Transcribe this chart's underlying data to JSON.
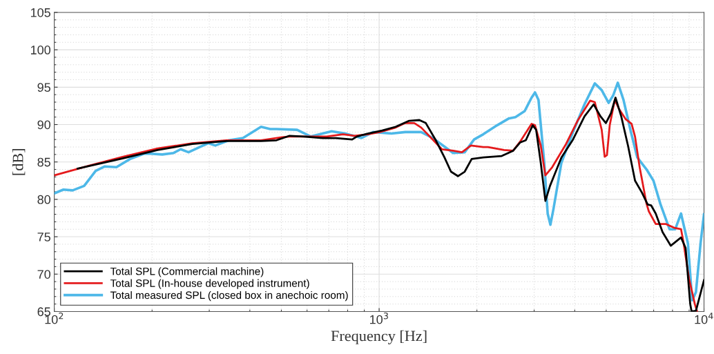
{
  "chart_data": {
    "type": "line",
    "xlabel": "Frequency [Hz]",
    "ylabel": "[dB]",
    "log": "x",
    "xlim": [
      100,
      10000
    ],
    "xticks": [
      {
        "value": 100,
        "label": "10$^{2}$"
      },
      {
        "value": 1000,
        "label": "10$^{3}$"
      },
      {
        "value": 10000,
        "label": "10$^{4}$"
      }
    ],
    "ylim": [
      65,
      105
    ],
    "yticks": [
      65,
      70,
      75,
      80,
      85,
      90,
      95,
      100,
      105
    ],
    "grid": true,
    "legend": "bottom left",
    "marker": "none",
    "line_style": "solid",
    "series": [
      {
        "name": "Total SPL (Commercial machine)",
        "color": "#000000",
        "x": [
          118,
          163,
          208,
          266,
          339,
          433,
          483,
          530,
          586,
          670,
          736,
          826,
          854,
          923,
          1022,
          1124,
          1237,
          1330,
          1392,
          1490,
          1589,
          1664,
          1748,
          1834,
          1927,
          2092,
          2384,
          2585,
          2715,
          2828,
          2970,
          3043,
          3144,
          3249,
          3357,
          3640,
          3951,
          4287,
          4574,
          4802,
          4988,
          5169,
          5341,
          5562,
          5841,
          6133,
          6441,
          6708,
          6874,
          7102,
          7458,
          7899,
          8498,
          8777,
          9069,
          9158,
          9445,
          10000
        ],
        "values": [
          84.1,
          85.5,
          86.6,
          87.4,
          87.8,
          87.8,
          87.9,
          88.5,
          88.4,
          88.2,
          88.2,
          88.0,
          88.4,
          88.8,
          89.2,
          89.7,
          90.5,
          90.6,
          90.2,
          88.0,
          85.6,
          83.7,
          83.1,
          83.7,
          85.4,
          85.6,
          85.8,
          86.5,
          87.6,
          87.9,
          89.9,
          89.3,
          84.9,
          79.8,
          81.8,
          85.6,
          88.0,
          91.1,
          92.7,
          91.1,
          90.2,
          91.5,
          93.6,
          91.1,
          87.1,
          82.5,
          80.9,
          79.3,
          79.2,
          78.1,
          75.6,
          73.8,
          74.9,
          73.5,
          66.0,
          65.0,
          65.1,
          69.2
        ]
      },
      {
        "name": "Total SPL (In-house developed instrument)",
        "color": "#e41a1c",
        "x": [
          100,
          128,
          163,
          208,
          266,
          339,
          433,
          502,
          530,
          616,
          690,
          774,
          838,
          923,
          1005,
          1124,
          1203,
          1283,
          1347,
          1462,
          1560,
          1690,
          1798,
          1917,
          2092,
          2162,
          2423,
          2585,
          2715,
          2946,
          3019,
          3144,
          3249,
          3410,
          3761,
          4081,
          4463,
          4612,
          4843,
          4946,
          5026,
          5126,
          5314,
          5473,
          5746,
          5985,
          6133,
          6337,
          6655,
          6763,
          7102,
          7641,
          8091,
          8498,
          8636,
          8993,
          9371,
          9524
        ],
        "values": [
          83.2,
          84.5,
          85.7,
          86.8,
          87.5,
          87.9,
          87.9,
          88.3,
          88.4,
          88.4,
          88.4,
          88.7,
          88.5,
          88.7,
          89.0,
          89.6,
          90.2,
          90.2,
          89.6,
          88.0,
          86.7,
          86.5,
          86.3,
          87.2,
          87.0,
          87.0,
          86.6,
          86.5,
          87.7,
          90.1,
          89.9,
          87.2,
          83.2,
          84.3,
          87.4,
          90.5,
          93.2,
          93.0,
          89.3,
          85.7,
          85.9,
          89.9,
          93.3,
          92.1,
          90.7,
          90.1,
          88.4,
          84.3,
          79.4,
          78.4,
          76.7,
          76.7,
          76.2,
          76.0,
          74.4,
          69.4,
          66.0,
          65.0
        ]
      },
      {
        "name": "Total measured SPL (closed box in anechoic room)",
        "color": "#4db8e8",
        "x": [
          100,
          106.7,
          113.9,
          123.6,
          134.1,
          143.1,
          155.4,
          171.2,
          188.8,
          198.2,
          215,
          233,
          245,
          259,
          284,
          298,
          313,
          345,
          381,
          433,
          462,
          483,
          559,
          616,
          714,
          787,
          883,
          958,
          1091,
          1203,
          1347,
          1462,
          1560,
          1690,
          1834,
          1960,
          2092,
          2307,
          2503,
          2628,
          2805,
          2946,
          3019,
          3094,
          3223,
          3302,
          3367,
          3440,
          3640,
          3951,
          4287,
          4612,
          4843,
          5087,
          5253,
          5428,
          5652,
          5935,
          6232,
          6655,
          6988,
          7338,
          7833,
          8155,
          8498,
          8924,
          9145,
          9202,
          9445,
          9758,
          10000
        ],
        "values": [
          80.8,
          81.3,
          81.2,
          81.8,
          83.8,
          84.4,
          84.3,
          85.4,
          86.1,
          86.1,
          86.0,
          86.2,
          86.7,
          86.3,
          87.1,
          87.5,
          87.2,
          87.9,
          88.2,
          89.7,
          89.4,
          89.4,
          89.3,
          88.4,
          89.1,
          88.8,
          88.2,
          89.0,
          88.8,
          89.0,
          89.0,
          88.2,
          87.3,
          86.2,
          86.3,
          88.0,
          88.7,
          89.9,
          90.8,
          91.0,
          91.8,
          93.6,
          94.3,
          93.3,
          84.9,
          78.1,
          76.6,
          78.7,
          84.9,
          89.0,
          92.7,
          95.5,
          94.6,
          92.9,
          93.9,
          95.6,
          93.3,
          89.3,
          85.6,
          84.0,
          82.5,
          79.4,
          76.0,
          76.0,
          78.1,
          74.1,
          67.9,
          66.5,
          67.6,
          74.1,
          78.0
        ]
      }
    ]
  }
}
